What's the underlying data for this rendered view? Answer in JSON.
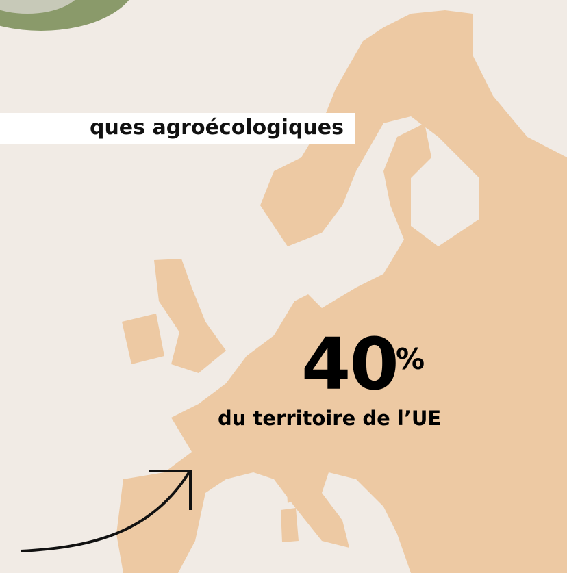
{
  "banner": {
    "text": "ques agroécologiques"
  },
  "stat": {
    "number": "40",
    "unit": "%",
    "caption": "du territoire de l’UE"
  }
}
